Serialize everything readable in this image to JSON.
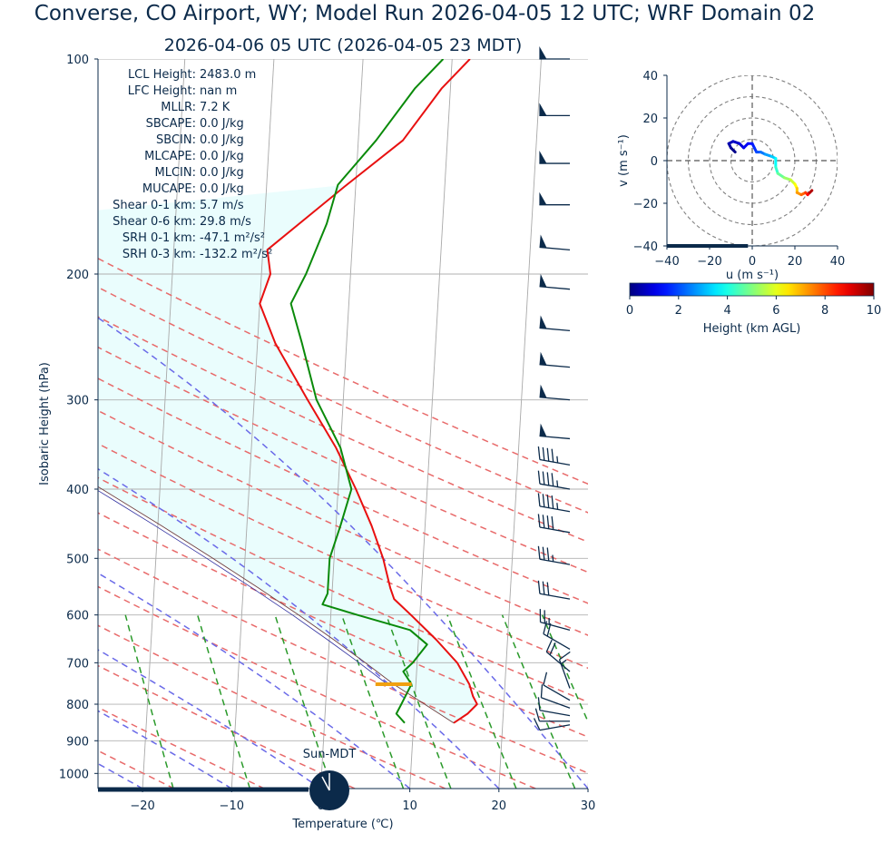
{
  "title": "Converse, CO Airport, WY; Model Run 2026-04-05 12 UTC; WRF Domain 02",
  "subtitle": "2026-04-06 05 UTC  (2026-04-05 23 MDT)",
  "colors": {
    "text": "#0b2a4a",
    "temperature": "#e81010",
    "dewpoint": "#0a8a0a",
    "dry_adiabat": "#e86a6a",
    "moist_adiabat": "#6a6ae8",
    "mixing_ratio": "#2a9a2a",
    "isotherm": "#a9a9a9",
    "cape_fill": "#e8fdfd",
    "lcl_marker": "#f0a010",
    "barb": "#0b2a4a"
  },
  "stats": [
    {
      "label": "LCL Height:",
      "value": "2483.0 m"
    },
    {
      "label": "LFC Height:",
      "value": "nan m"
    },
    {
      "label": "MLLR:",
      "value": "7.2 K"
    },
    {
      "label": "SBCAPE:",
      "value": "0.0 J/kg"
    },
    {
      "label": "SBCIN:",
      "value": "0.0 J/kg"
    },
    {
      "label": "MLCAPE:",
      "value": "0.0 J/kg"
    },
    {
      "label": "MLCIN:",
      "value": "0.0 J/kg"
    },
    {
      "label": "MUCAPE:",
      "value": "0.0 J/kg"
    },
    {
      "label": "Shear 0-1 km:",
      "value": "5.7 m/s"
    },
    {
      "label": "Shear 0-6 km:",
      "value": "29.8 m/s"
    },
    {
      "label": "SRH 0-1 km:",
      "value": "-47.1 m²/s²"
    },
    {
      "label": "SRH 0-3 km:",
      "value": "-132.2 m²/s²"
    }
  ],
  "sun_label": "Sun-MDT",
  "chart_data": [
    {
      "type": "line",
      "subtype": "skew-t",
      "xlabel": "Temperature (℃)",
      "ylabel": "Isobaric Height (hPa)",
      "xlim": [
        -25,
        30
      ],
      "ylim": [
        1050,
        100
      ],
      "yscale": "log",
      "x_ticks": [
        -20,
        -10,
        0,
        10,
        20,
        30
      ],
      "y_ticks": [
        1000,
        900,
        800,
        700,
        600,
        500,
        400,
        300,
        200,
        100
      ],
      "grid": true,
      "series": [
        {
          "key": "temperature",
          "points": [
            [
              850,
              14.5
            ],
            [
              825,
              16.0
            ],
            [
              800,
              17.0
            ],
            [
              780,
              16.5
            ],
            [
              750,
              16.0
            ],
            [
              700,
              14.5
            ],
            [
              650,
              12.0
            ],
            [
              600,
              9.0
            ],
            [
              570,
              7.0
            ],
            [
              550,
              6.5
            ],
            [
              500,
              5.5
            ],
            [
              450,
              4.0
            ],
            [
              400,
              2.0
            ],
            [
              350,
              -0.5
            ],
            [
              300,
              -4.0
            ],
            [
              250,
              -8.0
            ],
            [
              220,
              -10.0
            ],
            [
              200,
              -9.0
            ],
            [
              185,
              -9.5
            ],
            [
              150,
              -1.0
            ],
            [
              130,
              5.0
            ],
            [
              110,
              9.0
            ],
            [
              100,
              12.0
            ]
          ]
        },
        {
          "key": "dewpoint",
          "points": [
            [
              850,
              9.0
            ],
            [
              825,
              8.0
            ],
            [
              800,
              8.5
            ],
            [
              775,
              9.0
            ],
            [
              750,
              9.5
            ],
            [
              720,
              8.5
            ],
            [
              700,
              9.5
            ],
            [
              660,
              11.0
            ],
            [
              630,
              9.0
            ],
            [
              600,
              3.0
            ],
            [
              580,
              -1.0
            ],
            [
              560,
              -0.5
            ],
            [
              500,
              -0.5
            ],
            [
              450,
              0.5
            ],
            [
              400,
              1.5
            ],
            [
              350,
              0.0
            ],
            [
              300,
              -3.0
            ],
            [
              250,
              -5.0
            ],
            [
              220,
              -6.5
            ],
            [
              200,
              -5.0
            ],
            [
              170,
              -3.0
            ],
            [
              150,
              -2.0
            ],
            [
              130,
              2.0
            ],
            [
              110,
              6.0
            ],
            [
              100,
              9.0
            ]
          ]
        },
        {
          "key": "parcel",
          "points": [
            [
              850,
              14.5
            ],
            [
              750,
              7.5
            ],
            [
              700,
              4.2
            ],
            [
              650,
              0.5
            ],
            [
              600,
              -3.6
            ],
            [
              550,
              -8.3
            ],
            [
              500,
              -13.6
            ],
            [
              450,
              -19.6
            ],
            [
              400,
              -26.5
            ],
            [
              350,
              -34.5
            ],
            [
              300,
              -44.0
            ],
            [
              250,
              -55.0
            ],
            [
              200,
              -68.0
            ],
            [
              185,
              -72.0
            ]
          ]
        }
      ],
      "lcl": {
        "p": 750,
        "t": 7.5
      },
      "barbs": [
        {
          "p": 100,
          "dir": 270,
          "spd": 50
        },
        {
          "p": 120,
          "dir": 270,
          "spd": 50
        },
        {
          "p": 140,
          "dir": 270,
          "spd": 50
        },
        {
          "p": 160,
          "dir": 270,
          "spd": 50
        },
        {
          "p": 185,
          "dir": 275,
          "spd": 50
        },
        {
          "p": 210,
          "dir": 275,
          "spd": 50
        },
        {
          "p": 240,
          "dir": 275,
          "spd": 50
        },
        {
          "p": 270,
          "dir": 275,
          "spd": 50
        },
        {
          "p": 300,
          "dir": 275,
          "spd": 50
        },
        {
          "p": 340,
          "dir": 275,
          "spd": 50
        },
        {
          "p": 370,
          "dir": 280,
          "spd": 45
        },
        {
          "p": 400,
          "dir": 280,
          "spd": 45
        },
        {
          "p": 430,
          "dir": 280,
          "spd": 45
        },
        {
          "p": 460,
          "dir": 280,
          "spd": 40
        },
        {
          "p": 510,
          "dir": 280,
          "spd": 35
        },
        {
          "p": 570,
          "dir": 280,
          "spd": 30
        },
        {
          "p": 630,
          "dir": 285,
          "spd": 25
        },
        {
          "p": 670,
          "dir": 300,
          "spd": 20
        },
        {
          "p": 720,
          "dir": 310,
          "spd": 20
        },
        {
          "p": 760,
          "dir": 340,
          "spd": 15
        },
        {
          "p": 790,
          "dir": 300,
          "spd": 10
        },
        {
          "p": 810,
          "dir": 290,
          "spd": 10
        },
        {
          "p": 830,
          "dir": 280,
          "spd": 10
        },
        {
          "p": 845,
          "dir": 270,
          "spd": 10
        },
        {
          "p": 855,
          "dir": 260,
          "spd": 10
        }
      ]
    },
    {
      "type": "line",
      "subtype": "hodograph",
      "xlabel": "u (m s⁻¹)",
      "ylabel": "v (m s⁻¹)",
      "xlim": [
        -40,
        40
      ],
      "ylim": [
        -40,
        40
      ],
      "x_ticks": [
        -40,
        -20,
        0,
        20,
        40
      ],
      "y_ticks": [
        40,
        20,
        0,
        -20,
        -40
      ],
      "rings": [
        10,
        20,
        30,
        40
      ],
      "colorbar": {
        "label": "Height (km AGL)",
        "min": 0,
        "max": 10,
        "ticks": [
          0,
          2,
          4,
          6,
          8,
          10
        ]
      },
      "points": [
        {
          "u": -8,
          "v": 4,
          "h": 0.0
        },
        {
          "u": -10,
          "v": 6,
          "h": 0.2
        },
        {
          "u": -11,
          "v": 8,
          "h": 0.4
        },
        {
          "u": -9,
          "v": 9,
          "h": 0.6
        },
        {
          "u": -6,
          "v": 8,
          "h": 0.8
        },
        {
          "u": -4,
          "v": 6,
          "h": 1.0
        },
        {
          "u": -2,
          "v": 8,
          "h": 1.2
        },
        {
          "u": 0,
          "v": 8,
          "h": 1.4
        },
        {
          "u": 1,
          "v": 6,
          "h": 1.6
        },
        {
          "u": 2,
          "v": 4,
          "h": 1.8
        },
        {
          "u": 4,
          "v": 4,
          "h": 2.2
        },
        {
          "u": 6,
          "v": 3,
          "h": 2.6
        },
        {
          "u": 9,
          "v": 2,
          "h": 3.0
        },
        {
          "u": 11,
          "v": 1,
          "h": 3.5
        },
        {
          "u": 11,
          "v": -3,
          "h": 4.0
        },
        {
          "u": 12,
          "v": -6,
          "h": 4.5
        },
        {
          "u": 15,
          "v": -8,
          "h": 5.0
        },
        {
          "u": 18,
          "v": -9,
          "h": 5.5
        },
        {
          "u": 20,
          "v": -11,
          "h": 6.0
        },
        {
          "u": 21,
          "v": -13,
          "h": 6.5
        },
        {
          "u": 21,
          "v": -15,
          "h": 7.0
        },
        {
          "u": 23,
          "v": -16,
          "h": 7.5
        },
        {
          "u": 25,
          "v": -15,
          "h": 8.0
        },
        {
          "u": 26,
          "v": -16,
          "h": 8.5
        },
        {
          "u": 27,
          "v": -15,
          "h": 9.0
        },
        {
          "u": 28,
          "v": -14,
          "h": 10.0
        }
      ]
    }
  ]
}
